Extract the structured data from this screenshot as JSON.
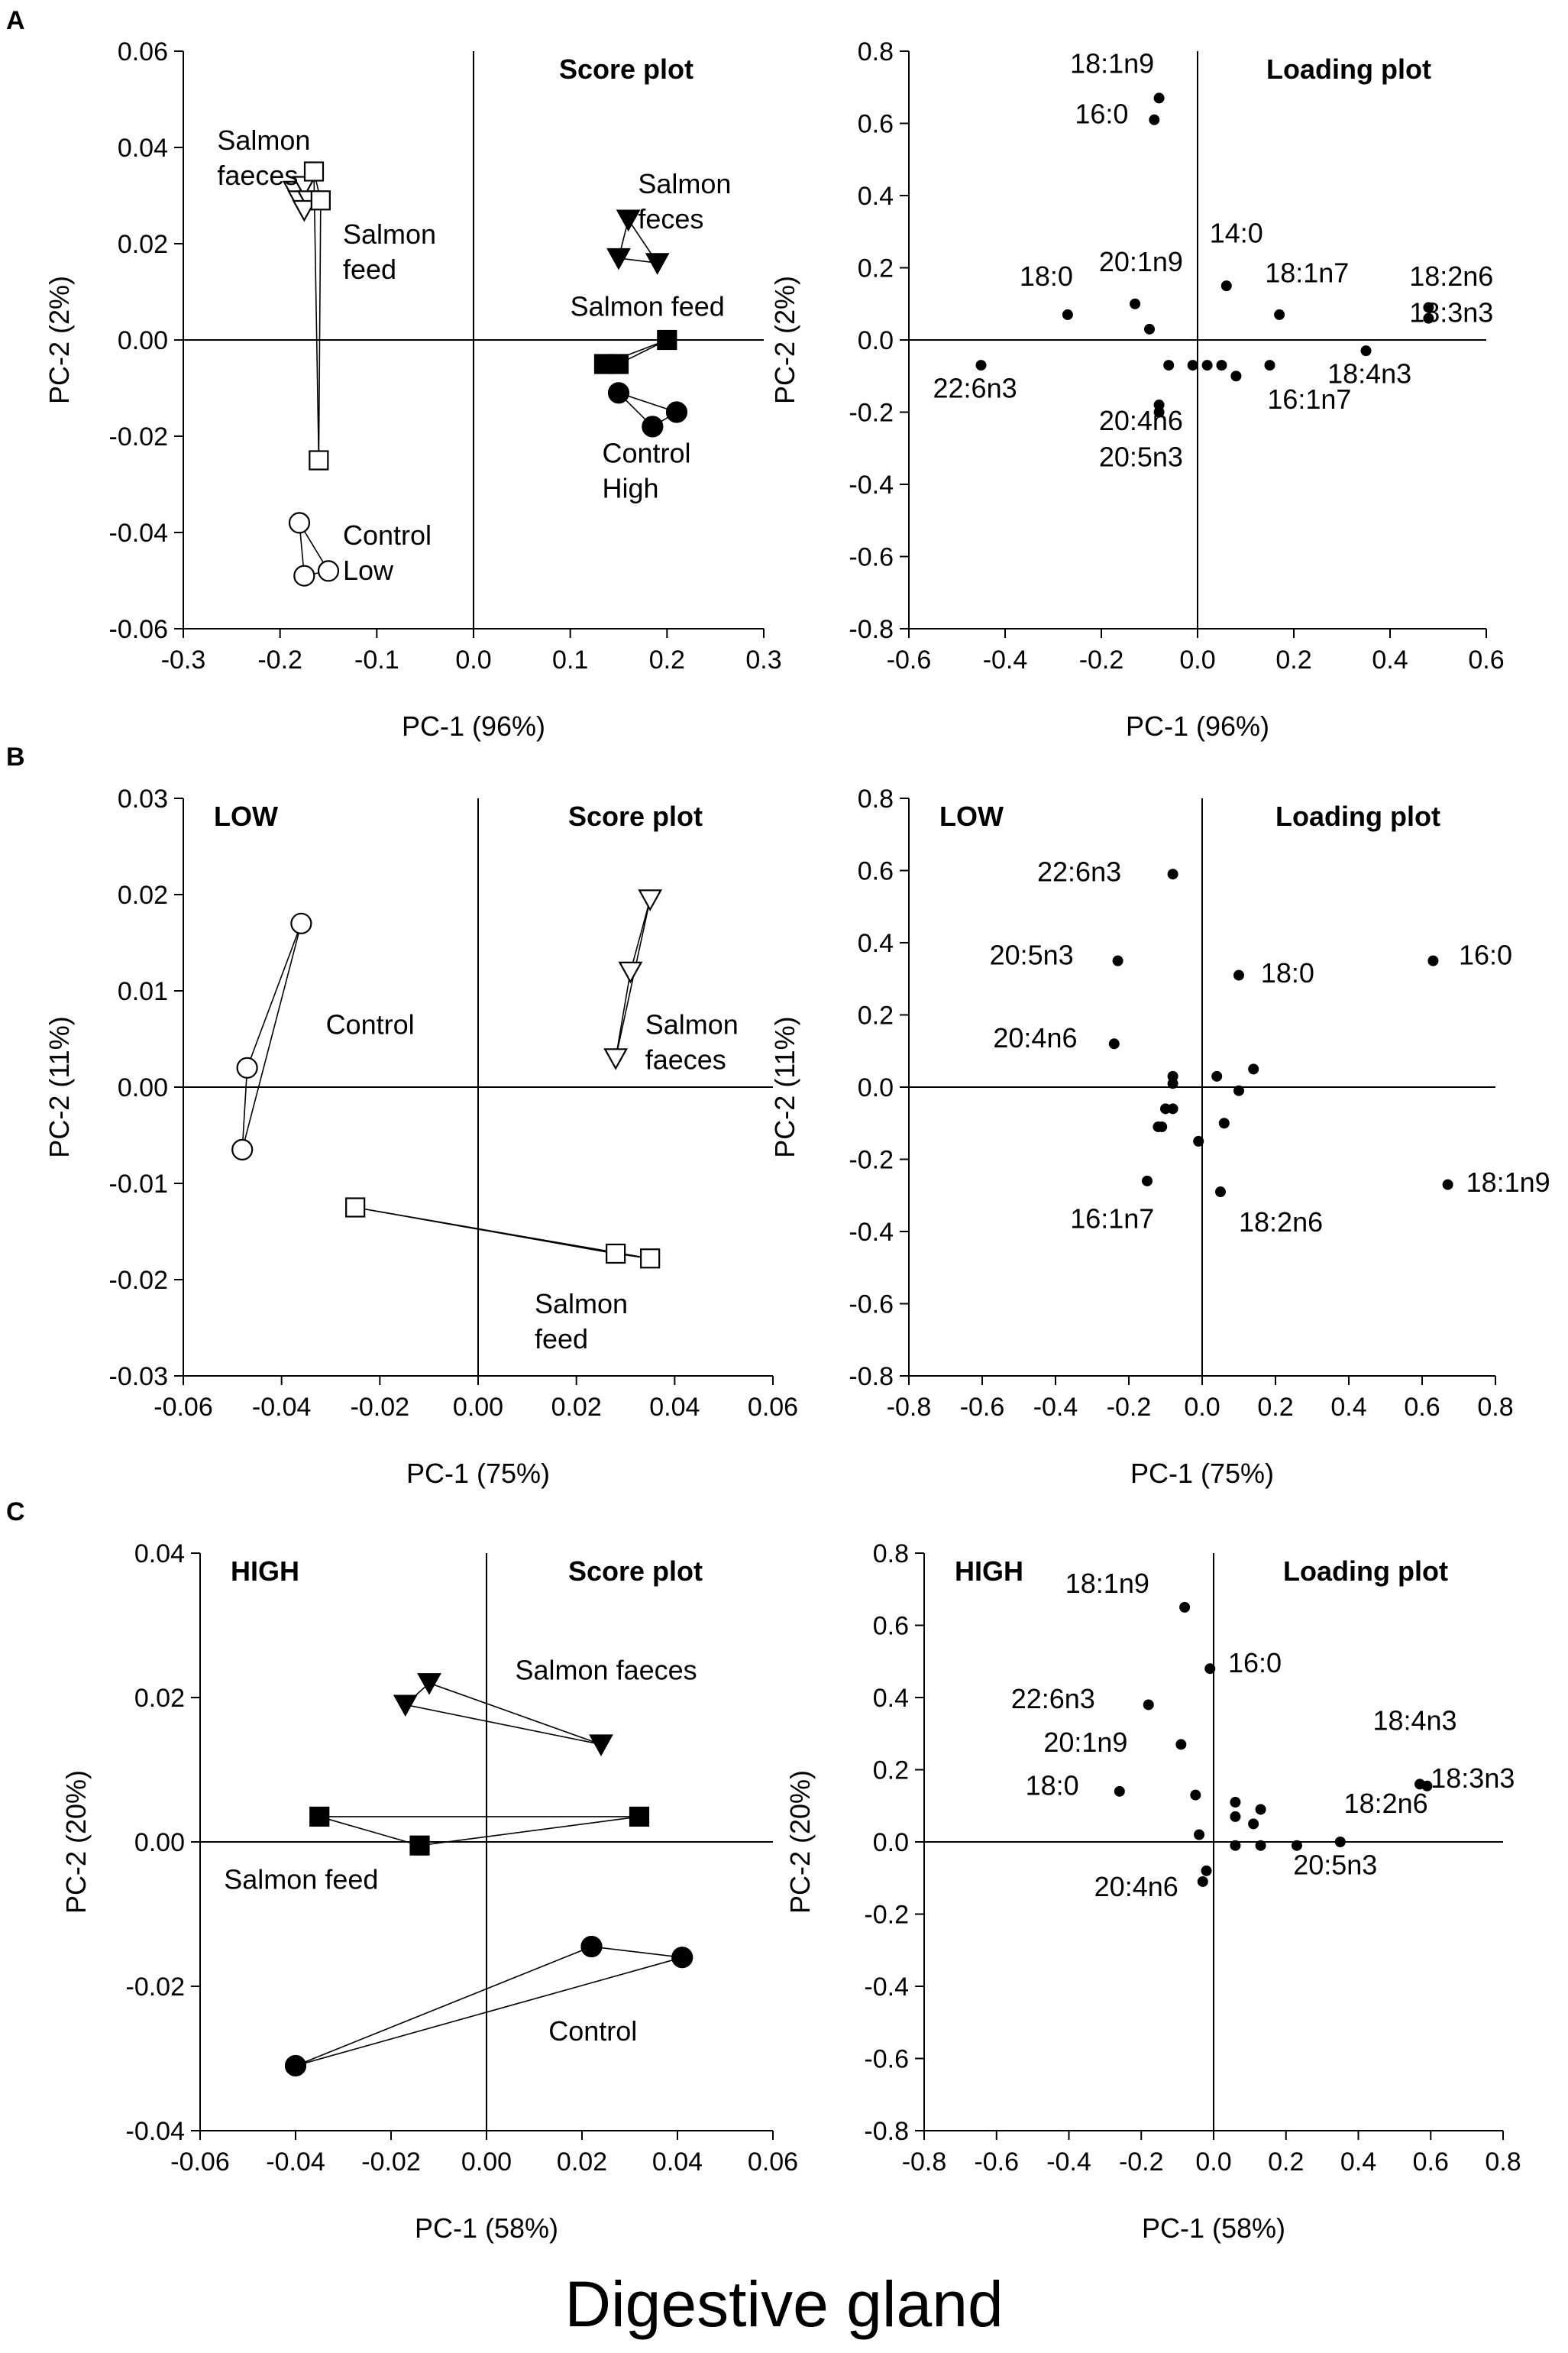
{
  "figure_title": "Digestive gland",
  "chart_data": [
    {
      "id": "A-score",
      "panel_letter": "A",
      "type": "scatter",
      "title": "Score plot",
      "corner_label": "",
      "xlabel": "PC-1 (96%)",
      "ylabel": "PC-2 (2%)",
      "xlim": [
        -0.3,
        0.3
      ],
      "ylim": [
        -0.06,
        0.06
      ],
      "xticks": [
        "-0.3",
        "-0.2",
        "-0.1",
        "0.0",
        "0.1",
        "0.2",
        "0.3"
      ],
      "yticks": [
        "-0.06",
        "-0.04",
        "-0.02",
        "0.00",
        "0.02",
        "0.04",
        "0.06"
      ],
      "series": [
        {
          "name": "Salmon faeces Low",
          "marker": "tri-open",
          "points": [
            [
              -0.185,
              0.031
            ],
            [
              -0.18,
              0.029
            ],
            [
              -0.175,
              0.032
            ],
            [
              -0.17,
              0.029
            ],
            [
              -0.175,
              0.027
            ]
          ],
          "polygon": true
        },
        {
          "name": "Salmon feed Low",
          "marker": "square-open",
          "points": [
            [
              -0.165,
              0.035
            ],
            [
              -0.158,
              0.029
            ],
            [
              -0.16,
              -0.025
            ]
          ],
          "polygon": true
        },
        {
          "name": "Control Low",
          "marker": "circle-open",
          "points": [
            [
              -0.18,
              -0.038
            ],
            [
              -0.175,
              -0.049
            ],
            [
              -0.15,
              -0.048
            ]
          ],
          "polygon": true
        },
        {
          "name": "Salmon feces High",
          "marker": "tri-filled",
          "points": [
            [
              0.16,
              0.025
            ],
            [
              0.15,
              0.017
            ],
            [
              0.19,
              0.016
            ]
          ],
          "polygon": true
        },
        {
          "name": "Salmon feed High",
          "marker": "square-filled",
          "points": [
            [
              0.2,
              0.0
            ],
            [
              0.15,
              -0.005
            ],
            [
              0.135,
              -0.005
            ]
          ],
          "polygon": true
        },
        {
          "name": "Control High",
          "marker": "circle-filled",
          "points": [
            [
              0.15,
              -0.011
            ],
            [
              0.21,
              -0.015
            ],
            [
              0.185,
              -0.018
            ]
          ],
          "polygon": true
        }
      ],
      "annotations": [
        {
          "lines": [
            "Salmon",
            "faeces"
          ],
          "x": -0.265,
          "y": 0.0395
        },
        {
          "lines": [
            "Salmon",
            "feed"
          ],
          "x": -0.135,
          "y": 0.02
        },
        {
          "lines": [
            "Control",
            "Low"
          ],
          "x": -0.135,
          "y": -0.0425
        },
        {
          "lines": [
            "Salmon",
            "feces"
          ],
          "x": 0.17,
          "y": 0.0305
        },
        {
          "lines": [
            "Salmon feed"
          ],
          "x": 0.1,
          "y": 0.005
        },
        {
          "lines": [
            "Control",
            "High"
          ],
          "x": 0.133,
          "y": -0.0255
        }
      ]
    },
    {
      "id": "A-loading",
      "panel_letter": "",
      "type": "scatter",
      "title": "Loading plot",
      "corner_label": "",
      "xlabel": "PC-1 (96%)",
      "ylabel": "PC-2 (2%)",
      "xlim": [
        -0.6,
        0.6
      ],
      "ylim": [
        -0.8,
        0.8
      ],
      "xticks": [
        "-0.6",
        "-0.4",
        "-0.2",
        "0.0",
        "0.2",
        "0.4",
        "0.6"
      ],
      "yticks": [
        "-0.8",
        "-0.6",
        "-0.4",
        "-0.2",
        "0.0",
        "0.2",
        "0.4",
        "0.6",
        "0.8"
      ],
      "points": [
        [
          -0.08,
          0.67
        ],
        [
          -0.09,
          0.61
        ],
        [
          -0.27,
          0.07
        ],
        [
          -0.45,
          -0.07
        ],
        [
          -0.13,
          0.1
        ],
        [
          -0.1,
          0.03
        ],
        [
          -0.06,
          -0.07
        ],
        [
          -0.08,
          -0.18
        ],
        [
          -0.08,
          -0.2
        ],
        [
          -0.01,
          -0.07
        ],
        [
          0.02,
          -0.07
        ],
        [
          0.05,
          -0.07
        ],
        [
          0.08,
          -0.1
        ],
        [
          0.15,
          -0.07
        ],
        [
          0.06,
          0.15
        ],
        [
          0.17,
          0.07
        ],
        [
          0.35,
          -0.03
        ],
        [
          0.48,
          0.09
        ],
        [
          0.48,
          0.06
        ]
      ],
      "annotations": [
        {
          "lines": [
            "18:1n9"
          ],
          "x": -0.265,
          "y": 0.74
        },
        {
          "lines": [
            "16:0"
          ],
          "x": -0.255,
          "y": 0.6
        },
        {
          "lines": [
            "18:0"
          ],
          "x": -0.37,
          "y": 0.15
        },
        {
          "lines": [
            "20:1n9"
          ],
          "x": -0.205,
          "y": 0.19
        },
        {
          "lines": [
            "14:0"
          ],
          "x": 0.025,
          "y": 0.27
        },
        {
          "lines": [
            "18:1n7"
          ],
          "x": 0.14,
          "y": 0.16
        },
        {
          "lines": [
            "18:2n6"
          ],
          "x": 0.44,
          "y": 0.15
        },
        {
          "lines": [
            "18:3n3"
          ],
          "x": 0.44,
          "y": 0.05
        },
        {
          "lines": [
            "22:6n3"
          ],
          "x": -0.55,
          "y": -0.16
        },
        {
          "lines": [
            "20:4n6"
          ],
          "x": -0.205,
          "y": -0.25
        },
        {
          "lines": [
            "20:5n3"
          ],
          "x": -0.205,
          "y": -0.35
        },
        {
          "lines": [
            "18:4n3"
          ],
          "x": 0.27,
          "y": -0.12
        },
        {
          "lines": [
            "16:1n7"
          ],
          "x": 0.145,
          "y": -0.19
        }
      ]
    },
    {
      "id": "B-score",
      "panel_letter": "B",
      "type": "scatter",
      "title": "Score plot",
      "corner_label": "LOW",
      "xlabel": "PC-1 (75%)",
      "ylabel": "PC-2 (11%)",
      "xlim": [
        -0.06,
        0.06
      ],
      "ylim": [
        -0.03,
        0.03
      ],
      "xticks": [
        "-0.06",
        "-0.04",
        "-0.02",
        "0.00",
        "0.02",
        "0.04",
        "0.06"
      ],
      "yticks": [
        "-0.03",
        "-0.02",
        "-0.01",
        "0.00",
        "0.01",
        "0.02",
        "0.03"
      ],
      "series": [
        {
          "name": "Control",
          "marker": "circle-open",
          "points": [
            [
              -0.036,
              0.017
            ],
            [
              -0.047,
              0.002
            ],
            [
              -0.048,
              -0.0065
            ]
          ],
          "polygon": true
        },
        {
          "name": "Salmon faeces",
          "marker": "tri-open",
          "points": [
            [
              0.035,
              0.0195
            ],
            [
              0.031,
              0.012
            ],
            [
              0.028,
              0.003
            ]
          ],
          "polygon": true
        },
        {
          "name": "Salmon feed",
          "marker": "square-open",
          "points": [
            [
              -0.025,
              -0.0125
            ],
            [
              0.028,
              -0.0173
            ],
            [
              0.035,
              -0.0178
            ]
          ],
          "polygon": true
        }
      ],
      "annotations": [
        {
          "lines": [
            "Control"
          ],
          "x": -0.031,
          "y": 0.0055
        },
        {
          "lines": [
            "Salmon",
            "faeces"
          ],
          "x": 0.034,
          "y": 0.0055
        },
        {
          "lines": [
            "Salmon",
            "feed"
          ],
          "x": 0.0115,
          "y": -0.0235
        }
      ]
    },
    {
      "id": "B-loading",
      "panel_letter": "",
      "type": "scatter",
      "title": "Loading plot",
      "corner_label": "LOW",
      "xlabel": "PC-1 (75%)",
      "ylabel": "PC-2 (11%)",
      "xlim": [
        -0.8,
        0.8
      ],
      "ylim": [
        -0.8,
        0.8
      ],
      "xticks": [
        "-0.8",
        "-0.6",
        "-0.4",
        "-0.2",
        "0.0",
        "0.2",
        "0.4",
        "0.6",
        "0.8"
      ],
      "yticks": [
        "-0.8",
        "-0.6",
        "-0.4",
        "-0.2",
        "0.0",
        "0.2",
        "0.4",
        "0.6",
        "0.8"
      ],
      "points": [
        [
          -0.08,
          0.59
        ],
        [
          -0.23,
          0.35
        ],
        [
          0.1,
          0.31
        ],
        [
          0.63,
          0.35
        ],
        [
          -0.24,
          0.12
        ],
        [
          -0.15,
          -0.26
        ],
        [
          0.05,
          -0.29
        ],
        [
          0.67,
          -0.27
        ],
        [
          -0.08,
          0.03
        ],
        [
          -0.08,
          0.01
        ],
        [
          0.04,
          0.03
        ],
        [
          0.14,
          0.05
        ],
        [
          0.1,
          -0.01
        ],
        [
          -0.1,
          -0.06
        ],
        [
          -0.08,
          -0.06
        ],
        [
          -0.12,
          -0.11
        ],
        [
          -0.11,
          -0.11
        ],
        [
          -0.01,
          -0.15
        ],
        [
          0.06,
          -0.1
        ]
      ],
      "annotations": [
        {
          "lines": [
            "22:6n3"
          ],
          "x": -0.45,
          "y": 0.57
        },
        {
          "lines": [
            "20:5n3"
          ],
          "x": -0.58,
          "y": 0.34
        },
        {
          "lines": [
            "18:0"
          ],
          "x": 0.16,
          "y": 0.29
        },
        {
          "lines": [
            "16:0"
          ],
          "x": 0.7,
          "y": 0.34
        },
        {
          "lines": [
            "20:4n6"
          ],
          "x": -0.57,
          "y": 0.11
        },
        {
          "lines": [
            "16:1n7"
          ],
          "x": -0.36,
          "y": -0.39
        },
        {
          "lines": [
            "18:2n6"
          ],
          "x": 0.1,
          "y": -0.4
        },
        {
          "lines": [
            "18:1n9"
          ],
          "x": 0.72,
          "y": -0.29
        }
      ]
    },
    {
      "id": "C-score",
      "panel_letter": "C",
      "type": "scatter",
      "title": "Score plot",
      "corner_label": "HIGH",
      "xlabel": "PC-1 (58%)",
      "ylabel": "PC-2 (20%)",
      "xlim": [
        -0.06,
        0.06
      ],
      "ylim": [
        -0.04,
        0.04
      ],
      "xticks": [
        "-0.06",
        "-0.04",
        "-0.02",
        "0.00",
        "0.02",
        "0.04",
        "0.06"
      ],
      "yticks": [
        "-0.04",
        "-0.02",
        "0.00",
        "0.02",
        "0.04"
      ],
      "series": [
        {
          "name": "Salmon faeces",
          "marker": "tri-filled",
          "points": [
            [
              -0.012,
              0.022
            ],
            [
              -0.017,
              0.019
            ],
            [
              0.024,
              0.0135
            ]
          ],
          "polygon": true
        },
        {
          "name": "Salmon feed",
          "marker": "square-filled",
          "points": [
            [
              -0.035,
              0.0035
            ],
            [
              -0.014,
              -0.0005
            ],
            [
              0.032,
              0.0035
            ]
          ],
          "polygon": true
        },
        {
          "name": "Control",
          "marker": "circle-filled",
          "points": [
            [
              0.022,
              -0.0145
            ],
            [
              0.041,
              -0.016
            ],
            [
              -0.04,
              -0.031
            ]
          ],
          "polygon": true
        }
      ],
      "annotations": [
        {
          "lines": [
            "Salmon faeces"
          ],
          "x": 0.006,
          "y": 0.0225
        },
        {
          "lines": [
            "Salmon feed"
          ],
          "x": -0.055,
          "y": -0.0065
        },
        {
          "lines": [
            "Control"
          ],
          "x": 0.013,
          "y": -0.0275
        }
      ]
    },
    {
      "id": "C-loading",
      "panel_letter": "",
      "type": "scatter",
      "title": "Loading plot",
      "corner_label": "HIGH",
      "xlabel": "PC-1 (58%)",
      "ylabel": "PC-2 (20%)",
      "xlim": [
        -0.8,
        0.8
      ],
      "ylim": [
        -0.8,
        0.8
      ],
      "xticks": [
        "-0.8",
        "-0.6",
        "-0.4",
        "-0.2",
        "0.0",
        "0.2",
        "0.4",
        "0.6",
        "0.8"
      ],
      "yticks": [
        "-0.8",
        "-0.6",
        "-0.4",
        "-0.2",
        "0.0",
        "0.2",
        "0.4",
        "0.6",
        "0.8"
      ],
      "points": [
        [
          -0.08,
          0.65
        ],
        [
          -0.01,
          0.48
        ],
        [
          -0.18,
          0.38
        ],
        [
          -0.09,
          0.27
        ],
        [
          -0.26,
          0.14
        ],
        [
          -0.05,
          0.13
        ],
        [
          0.06,
          0.11
        ],
        [
          0.06,
          0.07
        ],
        [
          0.11,
          0.05
        ],
        [
          0.13,
          0.09
        ],
        [
          -0.04,
          0.02
        ],
        [
          0.06,
          -0.01
        ],
        [
          0.13,
          -0.01
        ],
        [
          0.23,
          -0.01
        ],
        [
          0.35,
          0.0
        ],
        [
          0.57,
          0.16
        ],
        [
          0.59,
          0.155
        ],
        [
          -0.02,
          -0.08
        ],
        [
          -0.03,
          -0.11
        ]
      ],
      "annotations": [
        {
          "lines": [
            "18:1n9"
          ],
          "x": -0.41,
          "y": 0.69
        },
        {
          "lines": [
            "16:0"
          ],
          "x": 0.04,
          "y": 0.47
        },
        {
          "lines": [
            "22:6n3"
          ],
          "x": -0.56,
          "y": 0.37
        },
        {
          "lines": [
            "20:1n9"
          ],
          "x": -0.47,
          "y": 0.25
        },
        {
          "lines": [
            "18:0"
          ],
          "x": -0.52,
          "y": 0.13
        },
        {
          "lines": [
            "18:4n3"
          ],
          "x": 0.44,
          "y": 0.31
        },
        {
          "lines": [
            "18:3n3"
          ],
          "x": 0.6,
          "y": 0.15
        },
        {
          "lines": [
            "18:2n6"
          ],
          "x": 0.36,
          "y": 0.08
        },
        {
          "lines": [
            "20:5n3"
          ],
          "x": 0.22,
          "y": -0.09
        },
        {
          "lines": [
            "20:4n6"
          ],
          "x": -0.33,
          "y": -0.15
        }
      ]
    }
  ]
}
